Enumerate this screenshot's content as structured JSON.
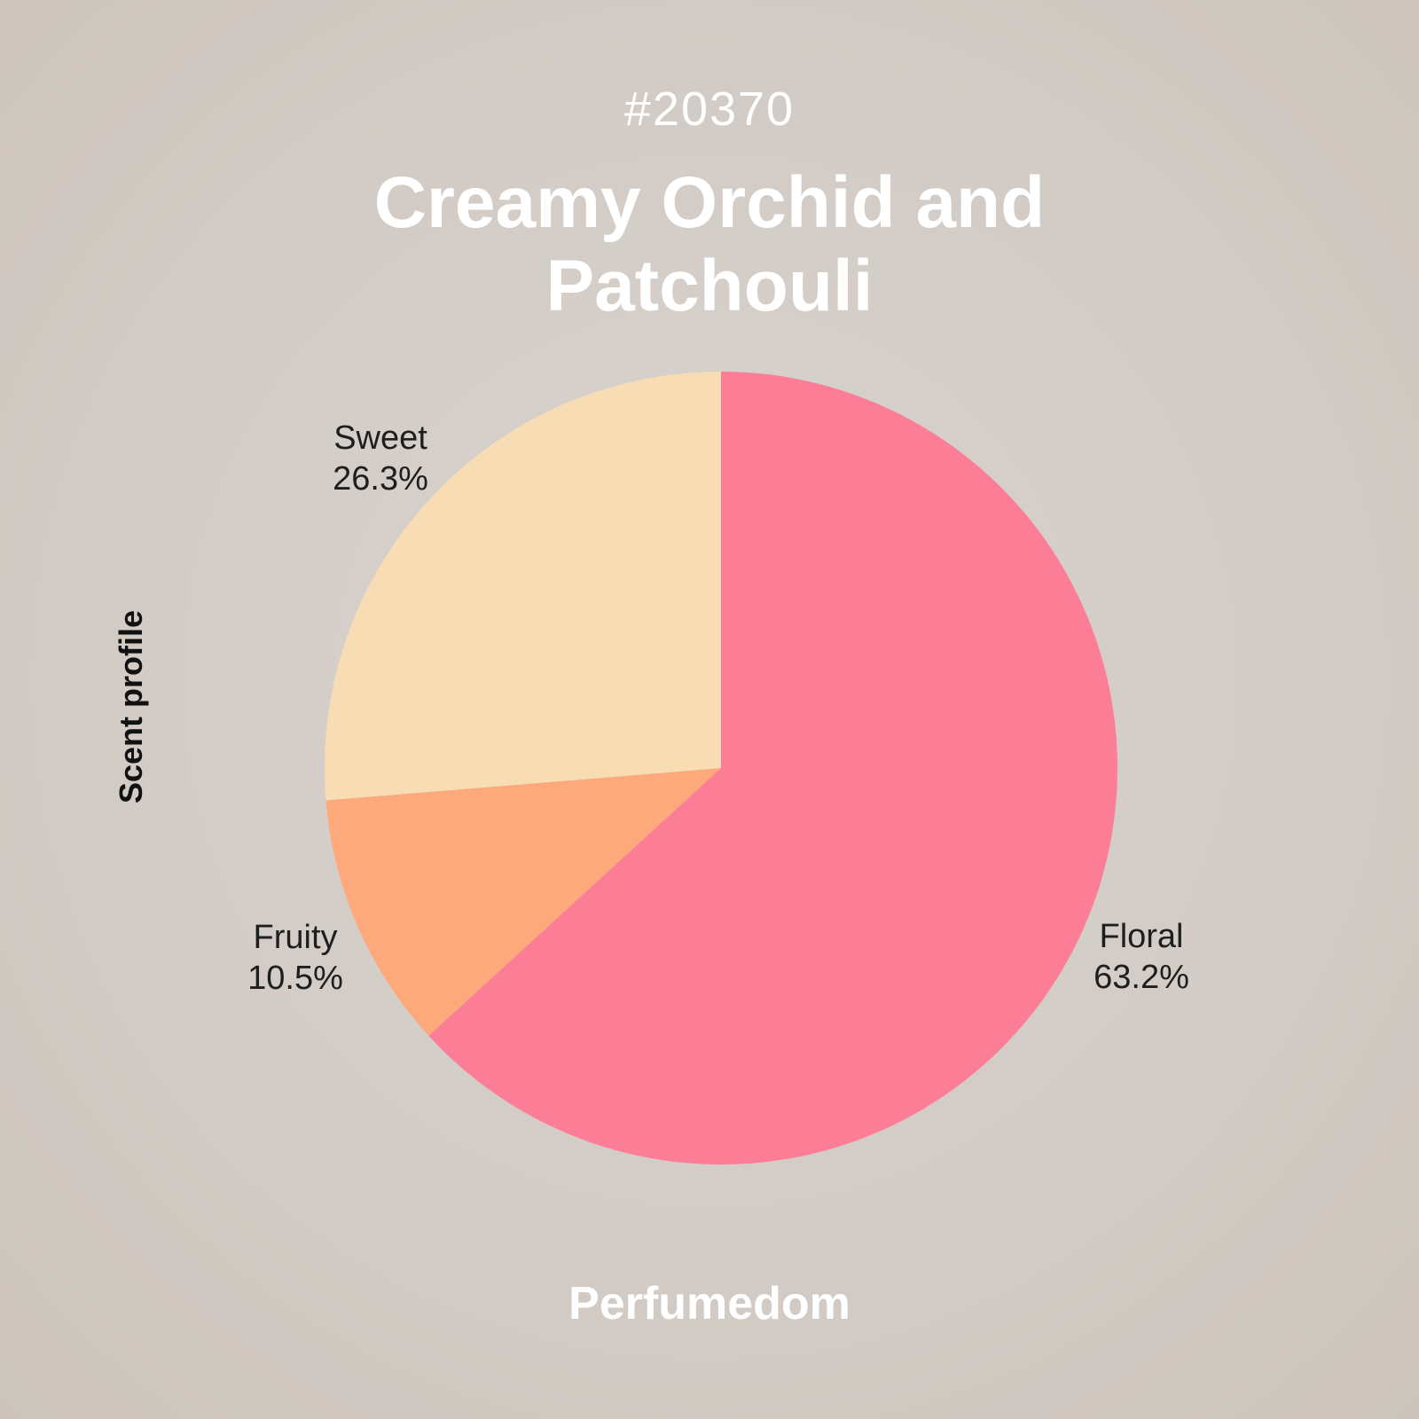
{
  "page": {
    "background_center": "#DAD4CE",
    "background_mid": "#D3CCC6",
    "background_edge": "#CDC5BD"
  },
  "header": {
    "number": "#20370",
    "text_color": "#FFFFFF"
  },
  "chart_data": {
    "type": "pie",
    "title": "Creamy Orchid and Patchouli",
    "axis_label": "Scent profile",
    "start_angle_deg": 0,
    "direction": "clockwise",
    "legend_position": "none",
    "label_color": "#1E1E1E",
    "slices": [
      {
        "label": "Floral",
        "value_pct": 63.2,
        "pct_label": "63.2%",
        "color": "#FB7D96"
      },
      {
        "label": "Fruity",
        "value_pct": 10.5,
        "pct_label": "10.5%",
        "color": "#FDA97B"
      },
      {
        "label": "Sweet",
        "value_pct": 26.3,
        "pct_label": "26.3%",
        "color": "#F8DCB4"
      }
    ]
  },
  "footer": {
    "brand": "Perfumedom"
  }
}
